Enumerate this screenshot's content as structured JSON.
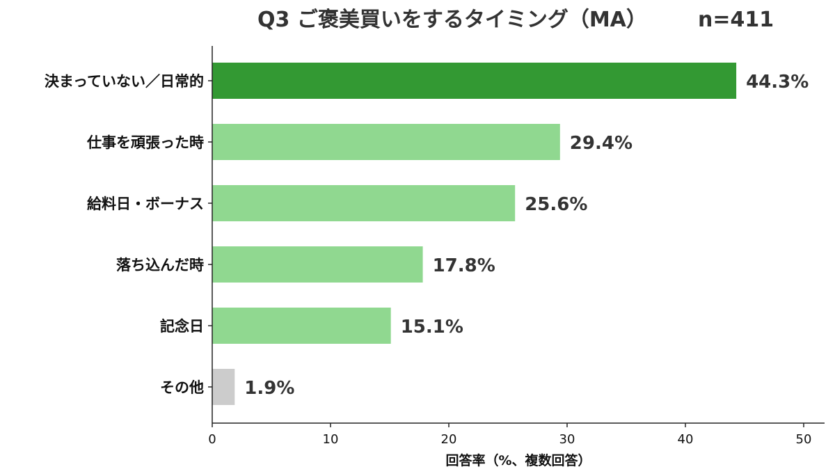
{
  "chart_data": {
    "type": "bar",
    "orientation": "horizontal",
    "title": "Q3 ご褒美買いをするタイミング（MA） n=411",
    "title_main": "Q3 ご褒美買いをするタイミング（MA）",
    "title_n": "n=411",
    "xlabel": "回答率（%、複数回答）",
    "ylabel": "",
    "xlim": [
      0,
      50
    ],
    "xticks": [
      0,
      10,
      20,
      30,
      40,
      50
    ],
    "grid": false,
    "categories": [
      "決まっていない／日常的",
      "仕事を頑張った時",
      "給料日・ボーナス",
      "落ち込んだ時",
      "記念日",
      "その他"
    ],
    "values": [
      44.3,
      29.4,
      25.6,
      17.8,
      15.1,
      1.9
    ],
    "value_labels": [
      "44.3%",
      "29.4%",
      "25.6%",
      "17.8%",
      "15.1%",
      "1.9%"
    ],
    "colors": [
      "#339933",
      "#90d890",
      "#90d890",
      "#90d890",
      "#90d890",
      "#cccccc"
    ]
  }
}
